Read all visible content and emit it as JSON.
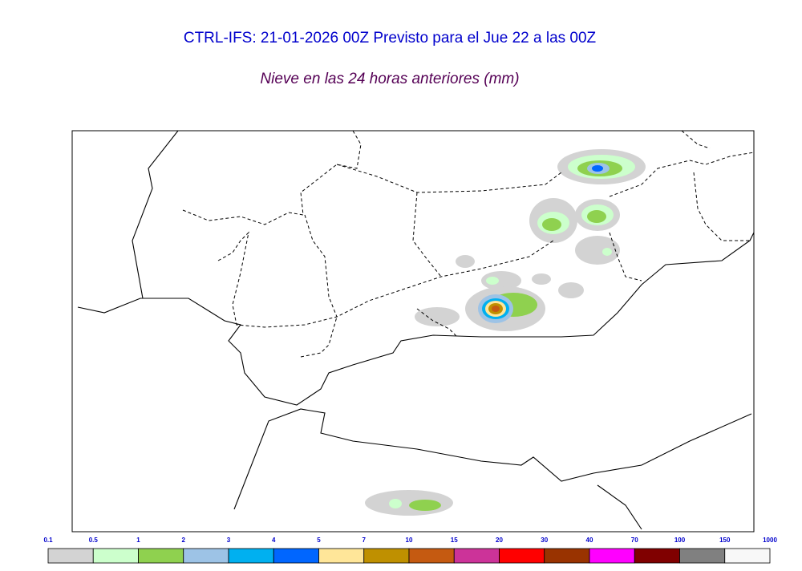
{
  "header": {
    "title": "CTRL-IFS: 21-01-2026 00Z Previsto para el Jue 22 a las 00Z",
    "subtitle": "Nieve en las 24 horas anteriores (mm)"
  },
  "legend": {
    "labels": [
      "0.1",
      "0.5",
      "1",
      "2",
      "3",
      "4",
      "5",
      "7",
      "10",
      "15",
      "20",
      "30",
      "40",
      "70",
      "100",
      "150",
      "1000"
    ],
    "colors": [
      "#d3d3d3",
      "#ccffcc",
      "#8fd14f",
      "#9dc3e6",
      "#00b0f0",
      "#0066ff",
      "#ffe699",
      "#bf9000",
      "#c55a11",
      "#cc3399",
      "#ff0000",
      "#993300",
      "#ff00ff",
      "#800000",
      "#808080",
      "#f8f8f8"
    ]
  }
}
